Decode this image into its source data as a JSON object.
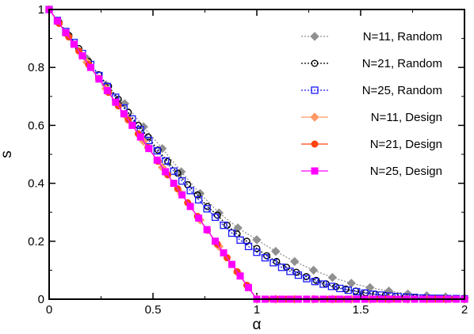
{
  "chart_data": {
    "type": "line",
    "title": "",
    "xlabel": "α",
    "ylabel": "s",
    "xlim": [
      0,
      2
    ],
    "ylim": [
      0,
      1
    ],
    "xticks": [
      0,
      0.5,
      1,
      1.5,
      2
    ],
    "yticks": [
      0,
      0.2,
      0.4,
      0.6,
      0.8,
      1
    ],
    "xtick_labels": [
      "0",
      "0.5",
      "1",
      "1.5",
      "2"
    ],
    "ytick_labels": [
      "0",
      "0.2",
      "0.4",
      "0.6",
      "0.8",
      "1"
    ],
    "legend_position": "top-right",
    "grid": false,
    "series": [
      {
        "name": "N=11, Random",
        "color": "#909090",
        "marker": "diamond",
        "linestyle": "dotted",
        "x": [
          0,
          0.091,
          0.182,
          0.273,
          0.364,
          0.455,
          0.545,
          0.636,
          0.727,
          0.818,
          0.909,
          1.0,
          1.091,
          1.182,
          1.273,
          1.364,
          1.455,
          1.545,
          1.636,
          1.727,
          1.818,
          1.909,
          2.0
        ],
        "y": [
          1.0,
          0.915,
          0.83,
          0.74,
          0.675,
          0.595,
          0.52,
          0.44,
          0.365,
          0.298,
          0.246,
          0.205,
          0.165,
          0.13,
          0.1,
          0.075,
          0.055,
          0.04,
          0.028,
          0.018,
          0.012,
          0.008,
          0.005
        ]
      },
      {
        "name": "N=21, Random",
        "color": "#000000",
        "marker": "circle",
        "linestyle": "dotted",
        "x": [
          0,
          0.048,
          0.095,
          0.143,
          0.19,
          0.238,
          0.286,
          0.333,
          0.381,
          0.429,
          0.476,
          0.524,
          0.571,
          0.619,
          0.667,
          0.714,
          0.762,
          0.81,
          0.857,
          0.905,
          0.952,
          1.0,
          1.048,
          1.095,
          1.143,
          1.19,
          1.238,
          1.286,
          1.333,
          1.381,
          1.429,
          1.476,
          1.524,
          1.571,
          1.619,
          1.667,
          1.714,
          1.762,
          1.81,
          1.857,
          1.905,
          1.952,
          2.0
        ],
        "y": [
          1.0,
          0.955,
          0.91,
          0.865,
          0.82,
          0.775,
          0.735,
          0.69,
          0.645,
          0.6,
          0.56,
          0.515,
          0.475,
          0.435,
          0.395,
          0.36,
          0.32,
          0.29,
          0.255,
          0.225,
          0.2,
          0.175,
          0.15,
          0.13,
          0.11,
          0.093,
          0.078,
          0.065,
          0.053,
          0.043,
          0.035,
          0.028,
          0.022,
          0.017,
          0.013,
          0.01,
          0.008,
          0.006,
          0.004,
          0.003,
          0.002,
          0.0015,
          0.001
        ]
      },
      {
        "name": "N=25, Random",
        "color": "#1a1aff",
        "marker": "square-open",
        "linestyle": "dotted",
        "x": [
          0,
          0.04,
          0.08,
          0.12,
          0.16,
          0.2,
          0.24,
          0.28,
          0.32,
          0.36,
          0.4,
          0.44,
          0.48,
          0.52,
          0.56,
          0.6,
          0.64,
          0.68,
          0.72,
          0.76,
          0.8,
          0.84,
          0.88,
          0.92,
          0.96,
          1.0,
          1.04,
          1.08,
          1.12,
          1.16,
          1.2,
          1.24,
          1.28,
          1.32,
          1.36,
          1.4,
          1.44,
          1.48,
          1.52,
          1.56,
          1.6,
          1.64,
          1.68,
          1.72,
          1.76,
          1.8,
          1.84,
          1.88,
          1.92,
          1.96,
          2.0
        ],
        "y": [
          1.0,
          0.962,
          0.924,
          0.886,
          0.848,
          0.81,
          0.772,
          0.734,
          0.697,
          0.66,
          0.622,
          0.585,
          0.548,
          0.512,
          0.477,
          0.442,
          0.408,
          0.375,
          0.343,
          0.312,
          0.283,
          0.255,
          0.228,
          0.204,
          0.182,
          0.162,
          0.143,
          0.126,
          0.11,
          0.096,
          0.083,
          0.071,
          0.061,
          0.052,
          0.044,
          0.037,
          0.031,
          0.026,
          0.021,
          0.017,
          0.014,
          0.011,
          0.009,
          0.007,
          0.006,
          0.004,
          0.003,
          0.003,
          0.002,
          0.002,
          0.001
        ]
      },
      {
        "name": "N=11, Design",
        "color": "#ff9966",
        "marker": "diamond",
        "linestyle": "solid",
        "x": [
          0,
          0.091,
          0.182,
          0.273,
          0.364,
          0.455,
          0.545,
          0.636,
          0.727,
          0.818,
          0.909,
          1.0,
          1.091,
          1.182,
          1.273,
          1.364,
          1.455,
          1.545,
          1.636,
          1.727,
          1.818,
          1.909,
          2.0
        ],
        "y": [
          1.0,
          0.909,
          0.818,
          0.727,
          0.636,
          0.545,
          0.455,
          0.364,
          0.273,
          0.182,
          0.091,
          0,
          0,
          0,
          0,
          0,
          0,
          0,
          0,
          0,
          0,
          0,
          0
        ]
      },
      {
        "name": "N=21, Design",
        "color": "#ff4411",
        "marker": "circle-filled",
        "linestyle": "solid",
        "x": [
          0,
          0.048,
          0.095,
          0.143,
          0.19,
          0.238,
          0.286,
          0.333,
          0.381,
          0.429,
          0.476,
          0.524,
          0.571,
          0.619,
          0.667,
          0.714,
          0.762,
          0.81,
          0.857,
          0.905,
          0.952,
          1.0,
          1.048,
          1.095,
          1.143,
          1.19,
          1.238,
          1.286,
          1.333,
          1.381,
          1.429,
          1.476,
          1.524,
          1.571,
          1.619,
          1.667,
          1.714,
          1.762,
          1.81,
          1.857,
          1.905,
          1.952,
          2.0
        ],
        "y": [
          1.0,
          0.952,
          0.905,
          0.857,
          0.81,
          0.762,
          0.714,
          0.667,
          0.619,
          0.571,
          0.524,
          0.476,
          0.429,
          0.381,
          0.333,
          0.286,
          0.238,
          0.19,
          0.143,
          0.095,
          0.048,
          0,
          0,
          0,
          0,
          0,
          0,
          0,
          0,
          0,
          0,
          0,
          0,
          0,
          0,
          0,
          0,
          0,
          0,
          0,
          0,
          0,
          0
        ]
      },
      {
        "name": "N=25, Design",
        "color": "#ff00ff",
        "marker": "square-filled",
        "linestyle": "solid",
        "x": [
          0,
          0.04,
          0.08,
          0.12,
          0.16,
          0.2,
          0.24,
          0.28,
          0.32,
          0.36,
          0.4,
          0.44,
          0.48,
          0.52,
          0.56,
          0.6,
          0.64,
          0.68,
          0.72,
          0.76,
          0.8,
          0.84,
          0.88,
          0.92,
          0.96,
          1.0,
          1.04,
          1.08,
          1.12,
          1.16,
          1.2,
          1.24,
          1.28,
          1.32,
          1.36,
          1.4,
          1.44,
          1.48,
          1.52,
          1.56,
          1.6,
          1.64,
          1.68,
          1.72,
          1.76,
          1.8,
          1.84,
          1.88,
          1.92,
          1.96,
          2.0
        ],
        "y": [
          1.0,
          0.96,
          0.92,
          0.88,
          0.84,
          0.8,
          0.76,
          0.72,
          0.68,
          0.64,
          0.6,
          0.56,
          0.52,
          0.48,
          0.44,
          0.4,
          0.36,
          0.32,
          0.28,
          0.24,
          0.2,
          0.16,
          0.12,
          0.08,
          0.04,
          0,
          0,
          0,
          0,
          0,
          0,
          0,
          0,
          0,
          0,
          0,
          0,
          0,
          0,
          0,
          0,
          0,
          0,
          0,
          0,
          0,
          0,
          0,
          0,
          0,
          0
        ]
      }
    ]
  }
}
